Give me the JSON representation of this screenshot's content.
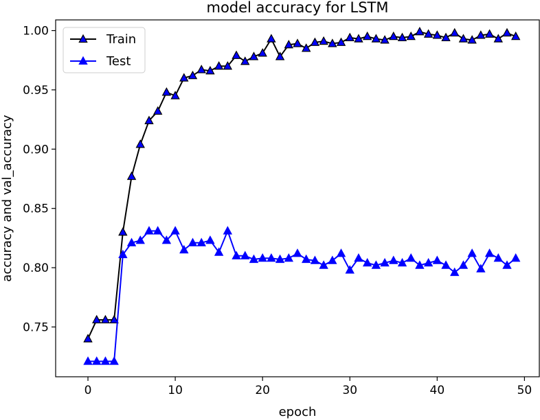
{
  "chart_data": {
    "type": "line",
    "title": "model accuracy for LSTM",
    "xlabel": "epoch",
    "ylabel": "accuracy and val_accuracy",
    "xlim": [
      -3.7,
      51.7
    ],
    "ylim": [
      0.708,
      1.009
    ],
    "xticks": [
      0,
      10,
      20,
      30,
      40,
      50
    ],
    "xtick_labels": [
      "0",
      "10",
      "20",
      "30",
      "40",
      "50"
    ],
    "yticks": [
      0.75,
      0.8,
      0.85,
      0.9,
      0.95,
      1.0
    ],
    "ytick_labels": [
      "0.75",
      "0.80",
      "0.85",
      "0.90",
      "0.95",
      "1.00"
    ],
    "grid": false,
    "legend_position": "top-left",
    "x": [
      0,
      1,
      2,
      3,
      4,
      5,
      6,
      7,
      8,
      9,
      10,
      11,
      12,
      13,
      14,
      15,
      16,
      17,
      18,
      19,
      20,
      21,
      22,
      23,
      24,
      25,
      26,
      27,
      28,
      29,
      30,
      31,
      32,
      33,
      34,
      35,
      36,
      37,
      38,
      39,
      40,
      41,
      42,
      43,
      44,
      45,
      46,
      47,
      48,
      49
    ],
    "series": [
      {
        "name": "Train",
        "line_color": "#000000",
        "marker_fill": "#0000ff",
        "values": [
          0.74,
          0.756,
          0.756,
          0.756,
          0.83,
          0.877,
          0.904,
          0.924,
          0.932,
          0.948,
          0.945,
          0.96,
          0.962,
          0.967,
          0.966,
          0.97,
          0.97,
          0.979,
          0.974,
          0.978,
          0.981,
          0.993,
          0.978,
          0.988,
          0.989,
          0.985,
          0.99,
          0.991,
          0.989,
          0.99,
          0.994,
          0.993,
          0.995,
          0.993,
          0.992,
          0.995,
          0.994,
          0.995,
          0.999,
          0.997,
          0.996,
          0.994,
          0.998,
          0.993,
          0.992,
          0.996,
          0.997,
          0.993,
          0.998,
          0.995
        ]
      },
      {
        "name": "Test",
        "line_color": "#0000ff",
        "marker_fill": "#0000ff",
        "values": [
          0.721,
          0.721,
          0.721,
          0.721,
          0.811,
          0.821,
          0.823,
          0.831,
          0.831,
          0.823,
          0.831,
          0.815,
          0.821,
          0.821,
          0.823,
          0.813,
          0.831,
          0.81,
          0.81,
          0.807,
          0.808,
          0.808,
          0.807,
          0.808,
          0.812,
          0.807,
          0.806,
          0.802,
          0.806,
          0.812,
          0.798,
          0.808,
          0.804,
          0.802,
          0.804,
          0.806,
          0.804,
          0.808,
          0.802,
          0.804,
          0.806,
          0.802,
          0.796,
          0.802,
          0.812,
          0.799,
          0.812,
          0.808,
          0.802,
          0.808
        ]
      }
    ]
  }
}
